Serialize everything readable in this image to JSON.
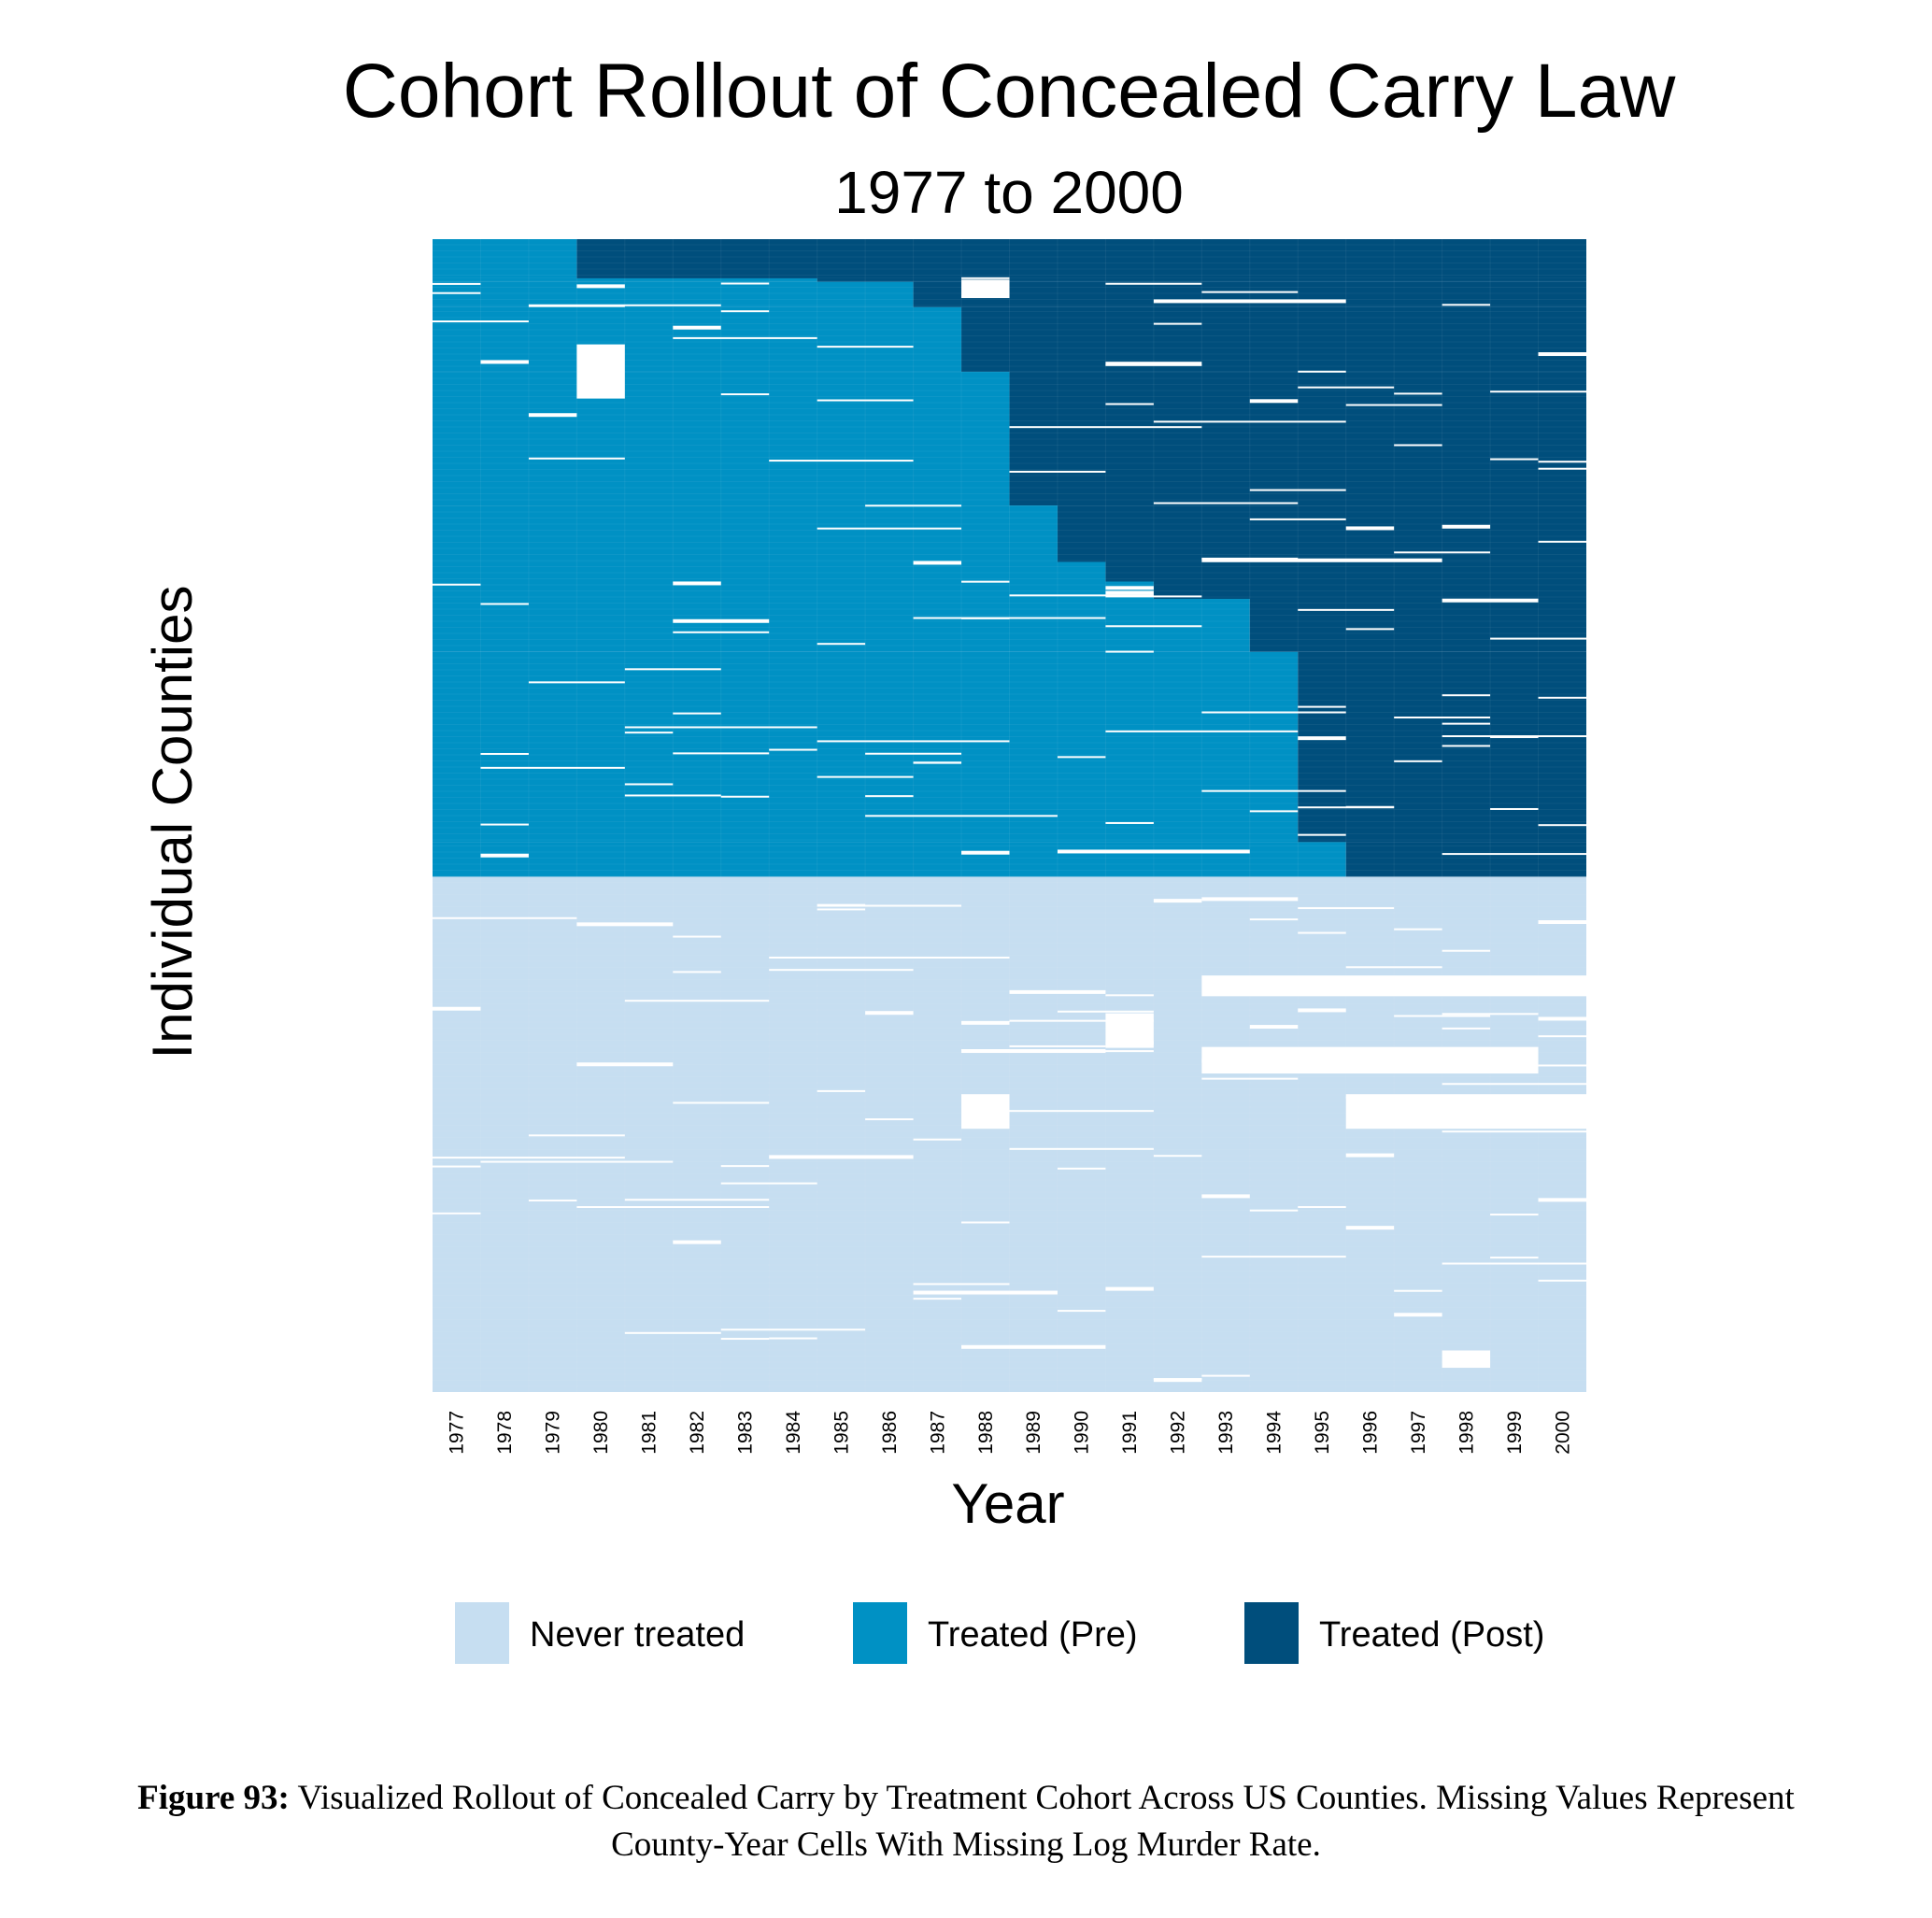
{
  "figure": {
    "caption_label": "Figure 93:",
    "caption_text": "Visualized Rollout of Concealed Carry by Treatment Cohort Across US Counties. Missing Values Represent County-Year Cells With Missing Log Murder Rate."
  },
  "chart_data": {
    "type": "heatmap",
    "title": "Cohort Rollout of Concealed Carry Law",
    "subtitle": "1977 to 2000",
    "xlabel": "Year",
    "ylabel": "Individual Counties",
    "x": [
      "1977",
      "1978",
      "1979",
      "1980",
      "1981",
      "1982",
      "1983",
      "1984",
      "1985",
      "1986",
      "1987",
      "1988",
      "1989",
      "1990",
      "1991",
      "1992",
      "1993",
      "1994",
      "1995",
      "1996",
      "1997",
      "1998",
      "1999",
      "2000"
    ],
    "legend": {
      "position": "bottom",
      "entries": [
        {
          "label": "Never treated",
          "color": "#c6def1"
        },
        {
          "label": "Treated (Pre)",
          "color": "#0091c4"
        },
        {
          "label": "Treated (Post)",
          "color": "#004e7c"
        }
      ]
    },
    "colors": {
      "never": "#c6def1",
      "pre": "#0091c4",
      "post": "#004e7c",
      "missing": "#ffffff"
    },
    "treated_share_of_counties": 0.553,
    "cohorts": [
      {
        "first_treated_year": 1980,
        "share_of_counties": 0.034
      },
      {
        "first_treated_year": 1985,
        "share_of_counties": 0.003
      },
      {
        "first_treated_year": 1987,
        "share_of_counties": 0.022
      },
      {
        "first_treated_year": 1988,
        "share_of_counties": 0.056
      },
      {
        "first_treated_year": 1989,
        "share_of_counties": 0.116
      },
      {
        "first_treated_year": 1990,
        "share_of_counties": 0.049
      },
      {
        "first_treated_year": 1991,
        "share_of_counties": 0.017
      },
      {
        "first_treated_year": 1992,
        "share_of_counties": 0.015
      },
      {
        "first_treated_year": 1994,
        "share_of_counties": 0.046
      },
      {
        "first_treated_year": 1995,
        "share_of_counties": 0.165
      },
      {
        "first_treated_year": 1996,
        "share_of_counties": 0.03
      }
    ]
  }
}
